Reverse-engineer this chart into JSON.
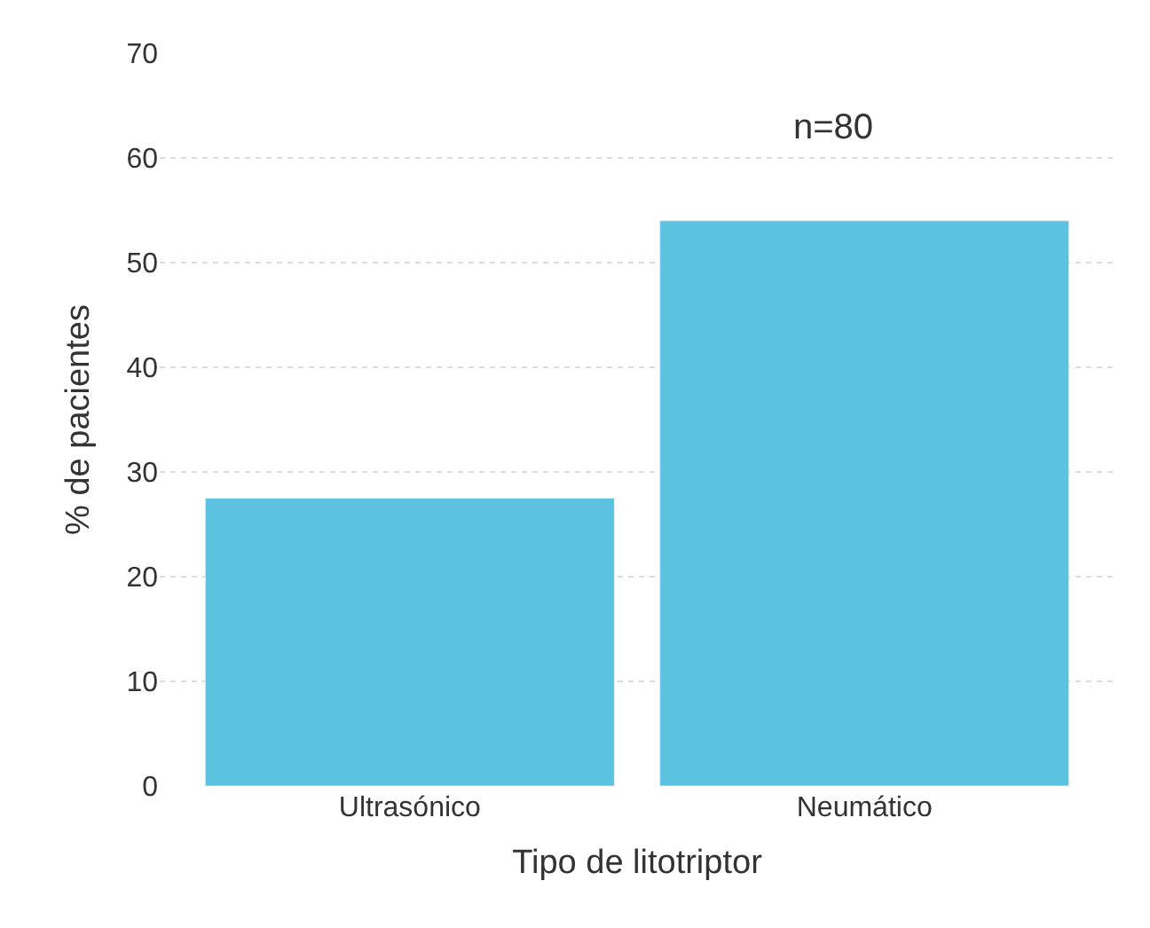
{
  "chart_data": {
    "type": "bar",
    "xlabel": "Tipo de litotriptor",
    "ylabel": "% de pacientes",
    "categories": [
      "Ultrasónico",
      "Neumático"
    ],
    "values": [
      27.5,
      54
    ],
    "color": "#5bc3e0",
    "ylim": [
      0,
      70
    ],
    "yticks": [
      0,
      10,
      20,
      30,
      40,
      50,
      60,
      70
    ],
    "grid": "y",
    "annotations": [
      "n=80"
    ]
  }
}
